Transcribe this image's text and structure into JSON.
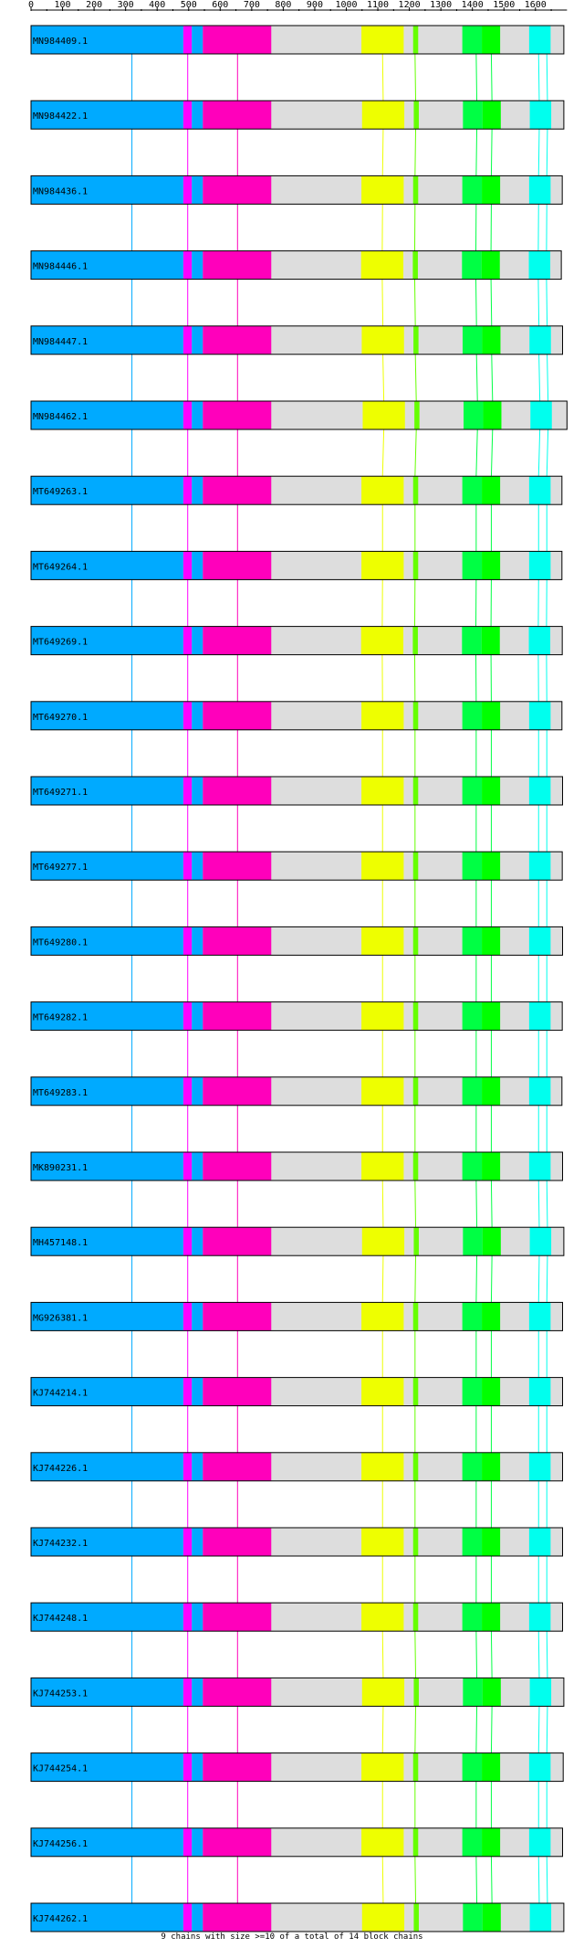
{
  "axis": {
    "ticks": [
      0,
      100,
      200,
      300,
      400,
      500,
      600,
      700,
      800,
      900,
      1000,
      1100,
      1200,
      1300,
      1400,
      1500,
      1600
    ],
    "max": 1700
  },
  "colors": {
    "background_bar": "#dddddd",
    "outline": "#000000",
    "blocks": {
      "blue": "#00aaff",
      "magenta": "#ff00ff",
      "hotpink": "#ff00bb",
      "yellow": "#eeff00",
      "green_light": "#66ff00",
      "green": "#00ff44",
      "green_mid": "#00ff00",
      "cyan": "#00ffee"
    },
    "links": {
      "blue": "#00aaff",
      "magenta": "#ff00ff",
      "hotpink": "#ff00bb",
      "yellow": "#eeff00",
      "green_light": "#66ff00",
      "green": "#00ff44",
      "cyan": "#00ffee"
    }
  },
  "sequences": [
    {
      "label": "MN984409.1",
      "length": 1690,
      "shift": 0
    },
    {
      "label": "MN984422.1",
      "length": 1690,
      "shift": 2
    },
    {
      "label": "MN984436.1",
      "length": 1685,
      "shift": 0
    },
    {
      "label": "MN984446.1",
      "length": 1682,
      "shift": -1
    },
    {
      "label": "MN984447.1",
      "length": 1686,
      "shift": 1
    },
    {
      "label": "MN984462.1",
      "length": 1700,
      "shift": 4
    },
    {
      "label": "MT649263.1",
      "length": 1684,
      "shift": 0
    },
    {
      "label": "MT649264.1",
      "length": 1684,
      "shift": 0
    },
    {
      "label": "MT649269.1",
      "length": 1685,
      "shift": -1
    },
    {
      "label": "MT649270.1",
      "length": 1684,
      "shift": 0
    },
    {
      "label": "MT649271.1",
      "length": 1686,
      "shift": 0
    },
    {
      "label": "MT649277.1",
      "length": 1685,
      "shift": 0
    },
    {
      "label": "MT649280.1",
      "length": 1686,
      "shift": 0
    },
    {
      "label": "MT649282.1",
      "length": 1685,
      "shift": 0
    },
    {
      "label": "MT649283.1",
      "length": 1684,
      "shift": 0
    },
    {
      "label": "MK890231.1",
      "length": 1686,
      "shift": 0
    },
    {
      "label": "MH457148.1",
      "length": 1690,
      "shift": 2
    },
    {
      "label": "MG926381.1",
      "length": 1686,
      "shift": 0
    },
    {
      "label": "KJ744214.1",
      "length": 1686,
      "shift": 0
    },
    {
      "label": "KJ744226.1",
      "length": 1686,
      "shift": 0
    },
    {
      "label": "KJ744232.1",
      "length": 1686,
      "shift": 0
    },
    {
      "label": "KJ744248.1",
      "length": 1686,
      "shift": 0
    },
    {
      "label": "KJ744253.1",
      "length": 1690,
      "shift": 2
    },
    {
      "label": "KJ744254.1",
      "length": 1688,
      "shift": 0
    },
    {
      "label": "KJ744256.1",
      "length": 1686,
      "shift": 0
    },
    {
      "label": "KJ744262.1",
      "length": 1690,
      "shift": 2
    }
  ],
  "blocks": [
    {
      "name": "blue",
      "start": 0,
      "end": 483
    },
    {
      "name": "magenta",
      "start": 483,
      "end": 510
    },
    {
      "name": "blue",
      "start": 510,
      "end": 545
    },
    {
      "name": "hotpink",
      "start": 545,
      "end": 762
    },
    {
      "name": "yellow",
      "start": 1048,
      "end": 1182
    },
    {
      "name": "green_light",
      "start": 1212,
      "end": 1228
    },
    {
      "name": "green",
      "start": 1368,
      "end": 1430
    },
    {
      "name": "green_mid",
      "start": 1430,
      "end": 1488
    },
    {
      "name": "cyan",
      "start": 1580,
      "end": 1648
    }
  ],
  "links": [
    {
      "color": "blue",
      "pos": 320
    },
    {
      "color": "magenta",
      "pos": 497
    },
    {
      "color": "hotpink",
      "pos": 655
    },
    {
      "color": "yellow",
      "pos": 1115
    },
    {
      "color": "green_light",
      "pos": 1218
    },
    {
      "color": "green",
      "pos": 1412
    },
    {
      "color": "green",
      "pos": 1460
    },
    {
      "color": "cyan",
      "pos": 1610
    },
    {
      "color": "cyan",
      "pos": 1636
    }
  ],
  "footer": "9 chains with size >=10 of a total of 14 block chains"
}
